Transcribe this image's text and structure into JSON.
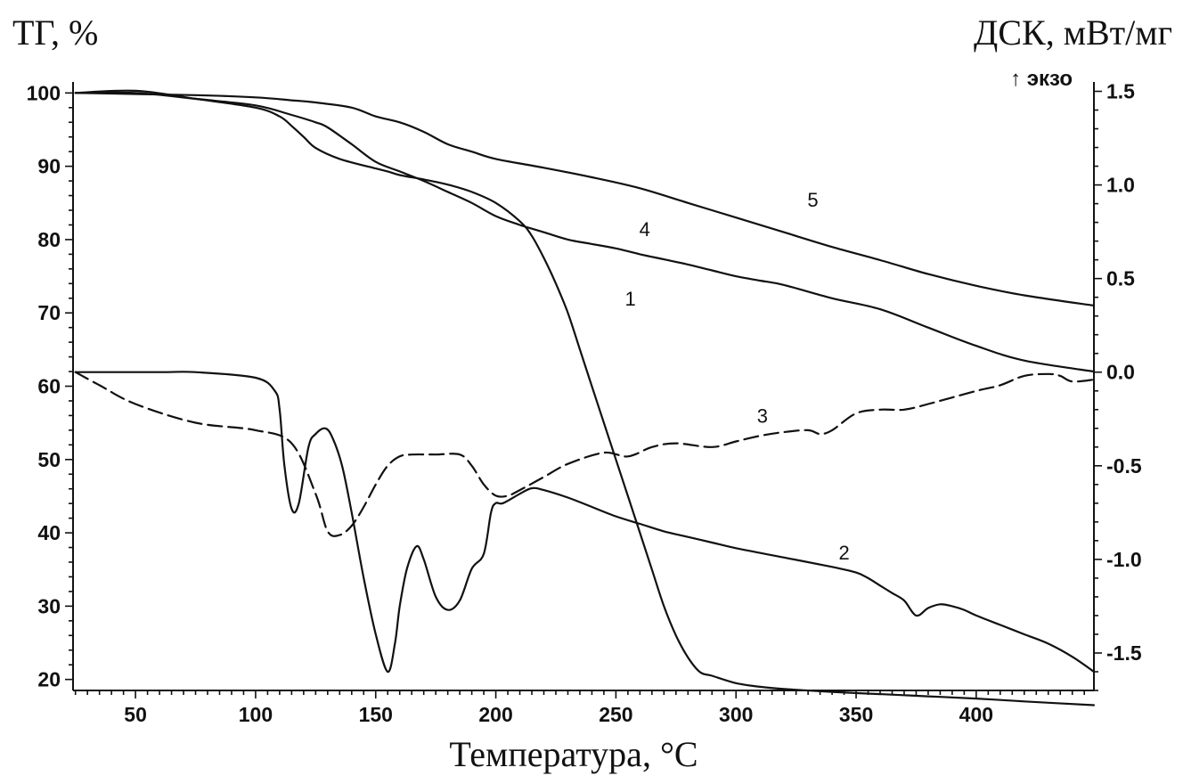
{
  "chart_data": {
    "type": "line",
    "xlabel": "Температура, °C",
    "ylabel_left": "ТГ, %",
    "ylabel_right": "ДСК, мВт/мг",
    "exo_label": "↑ экзо",
    "xlim": [
      24,
      449
    ],
    "ylim_left": [
      18.5,
      101.5
    ],
    "ylim_right": [
      -1.7,
      1.55
    ],
    "x_ticks": [
      50,
      100,
      150,
      200,
      250,
      300,
      350,
      400
    ],
    "y_left_ticks": [
      20,
      30,
      40,
      50,
      60,
      70,
      80,
      90,
      100
    ],
    "y_right_ticks": [
      -1.5,
      -1.0,
      -0.5,
      0.0,
      0.5,
      1.0,
      1.5
    ],
    "y_right_tick_labels": [
      "-1.5",
      "-1.0",
      "-0.5",
      "0.0",
      "0.5",
      "1.0",
      "1.5"
    ],
    "grid": false,
    "series": [
      {
        "name": "1",
        "axis": "left",
        "style": "solid",
        "label_at": [
          256,
          71
        ],
        "x": [
          25,
          50,
          75,
          100,
          115,
          125,
          130,
          140,
          150,
          160,
          170,
          180,
          190,
          200,
          210,
          220,
          230,
          240,
          250,
          260,
          270,
          280,
          290,
          300,
          310,
          320,
          340,
          360,
          380,
          400,
          420,
          449
        ],
        "y": [
          100,
          100,
          99.2,
          98.3,
          97,
          96,
          95.3,
          93,
          90.6,
          89.3,
          88,
          86.5,
          85,
          83.2,
          82,
          81,
          80,
          79.4,
          78.8,
          78,
          77.3,
          76.6,
          75.8,
          75,
          74.4,
          73.8,
          72,
          70.5,
          68,
          65.5,
          63.5,
          62
        ]
      },
      {
        "name": "2",
        "axis": "right",
        "style": "solid",
        "label_at": [
          345,
          -1.0
        ],
        "x": [
          25,
          60,
          75,
          100,
          108,
          110,
          112,
          115,
          118,
          122,
          125,
          129,
          132,
          136,
          140,
          145,
          150,
          155,
          158,
          160,
          163,
          167,
          170,
          175,
          180,
          185,
          190,
          195,
          198,
          200,
          203,
          210,
          215,
          220,
          230,
          240,
          250,
          260,
          270,
          280,
          290,
          300,
          320,
          340,
          350,
          355,
          360,
          365,
          370,
          375,
          380,
          385,
          390,
          395,
          400,
          410,
          420,
          430,
          440,
          449
        ],
        "y": [
          0.0,
          0.0,
          0.0,
          -0.03,
          -0.1,
          -0.2,
          -0.5,
          -0.73,
          -0.7,
          -0.4,
          -0.33,
          -0.3,
          -0.35,
          -0.5,
          -0.75,
          -1.1,
          -1.4,
          -1.6,
          -1.45,
          -1.25,
          -1.05,
          -0.93,
          -1.0,
          -1.2,
          -1.27,
          -1.22,
          -1.05,
          -0.97,
          -0.75,
          -0.7,
          -0.7,
          -0.65,
          -0.62,
          -0.63,
          -0.67,
          -0.72,
          -0.77,
          -0.81,
          -0.85,
          -0.88,
          -0.91,
          -0.94,
          -0.99,
          -1.04,
          -1.07,
          -1.1,
          -1.14,
          -1.18,
          -1.22,
          -1.3,
          -1.26,
          -1.24,
          -1.25,
          -1.27,
          -1.3,
          -1.35,
          -1.4,
          -1.45,
          -1.52,
          -1.6
        ]
      },
      {
        "name": "3",
        "axis": "right",
        "style": "dashed",
        "label_at": [
          311,
          -0.27
        ],
        "x": [
          25,
          35,
          50,
          75,
          100,
          115,
          125,
          130,
          135,
          140,
          145,
          150,
          155,
          160,
          165,
          175,
          185,
          190,
          195,
          200,
          205,
          210,
          220,
          230,
          245,
          255,
          265,
          275,
          290,
          300,
          310,
          320,
          330,
          335,
          340,
          350,
          360,
          370,
          380,
          400,
          410,
          420,
          430,
          435,
          440,
          449
        ],
        "y": [
          0.0,
          -0.07,
          -0.17,
          -0.27,
          -0.31,
          -0.38,
          -0.65,
          -0.85,
          -0.87,
          -0.82,
          -0.72,
          -0.6,
          -0.5,
          -0.45,
          -0.44,
          -0.44,
          -0.44,
          -0.5,
          -0.6,
          -0.66,
          -0.66,
          -0.63,
          -0.56,
          -0.49,
          -0.43,
          -0.45,
          -0.4,
          -0.38,
          -0.4,
          -0.37,
          -0.34,
          -0.32,
          -0.31,
          -0.33,
          -0.31,
          -0.22,
          -0.2,
          -0.2,
          -0.17,
          -0.1,
          -0.07,
          -0.02,
          -0.01,
          -0.02,
          -0.05,
          -0.04
        ]
      },
      {
        "name": "4",
        "axis": "left",
        "style": "solid",
        "label_at": [
          262,
          80.5
        ],
        "x": [
          25,
          50,
          75,
          100,
          110,
          115,
          120,
          125,
          135,
          150,
          155,
          160,
          170,
          180,
          190,
          200,
          210,
          215,
          220,
          225,
          230,
          235,
          240,
          245,
          250,
          255,
          260,
          265,
          270,
          275,
          280,
          285,
          290,
          300,
          310,
          320,
          340,
          360,
          380,
          400,
          420,
          449
        ],
        "y": [
          100,
          100.3,
          99.2,
          98,
          96.8,
          95.5,
          94,
          92.5,
          91,
          89.7,
          89.3,
          88.8,
          88.2,
          87.5,
          86.5,
          85,
          82.5,
          80.5,
          77.5,
          74,
          70,
          65,
          60,
          55,
          50,
          45,
          40,
          35,
          30,
          26,
          23,
          21,
          20.5,
          19.5,
          19,
          18.7,
          18.3,
          18,
          17.7,
          17.4,
          17,
          16.5
        ]
      },
      {
        "name": "5",
        "axis": "left",
        "style": "solid",
        "label_at": [
          332,
          84.5
        ],
        "x": [
          25,
          75,
          100,
          115,
          125,
          140,
          150,
          160,
          170,
          180,
          190,
          200,
          220,
          240,
          260,
          280,
          300,
          320,
          340,
          360,
          380,
          400,
          420,
          449
        ],
        "y": [
          100,
          99.7,
          99.4,
          99,
          98.7,
          98,
          96.8,
          96,
          94.7,
          93,
          92,
          91,
          89.8,
          88.5,
          87,
          85,
          83,
          81,
          79,
          77.2,
          75.3,
          73.7,
          72.4,
          71
        ]
      }
    ]
  }
}
